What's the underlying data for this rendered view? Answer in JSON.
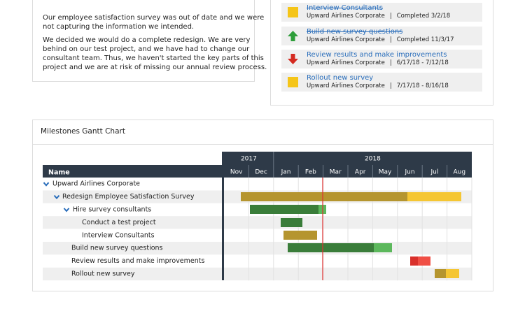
{
  "status_panel": {
    "paragraphs": [
      [
        "Our employee satisfaction survey was out of date and we were",
        "not capturing the information we intended."
      ],
      [
        "We decided we would do a complete redesign. We are very",
        "behind on our test project, and we have had to change our",
        "consultant team. Thus, we haven't started the key parts of this",
        "project and we are at risk of missing our annual review process."
      ]
    ]
  },
  "tasks": [
    {
      "title": "Interview Consultants",
      "organization": "Upward Airlines Corporate",
      "separator": "|",
      "detail": "Completed 3/2/18"
    },
    {
      "title": "Build new survey questions",
      "organization": "Upward Airlines Corporate",
      "separator": "|",
      "detail": "Completed 11/3/17"
    },
    {
      "title": "Review results and make improvements",
      "organization": "Upward Airlines Corporate",
      "separator": "|",
      "detail": "6/17/18 - 7/12/18"
    },
    {
      "title": "Rollout new survey",
      "organization": "Upward Airlines Corporate",
      "separator": "|",
      "detail": "7/17/18 - 8/16/18"
    }
  ],
  "gantt": {
    "title": "Milestones Gantt Chart",
    "name_header": "Name",
    "years": [
      "2017",
      "2018"
    ],
    "months": [
      "Nov",
      "Dec",
      "Jan",
      "Feb",
      "Mar",
      "Apr",
      "May",
      "Jun",
      "Jul",
      "Aug"
    ],
    "rows": [
      "Upward Airlines Corporate",
      "Redesign Employee Satisfaction Survey",
      "Hire survey consultants",
      "Conduct a test project",
      "Interview Consultants",
      "Build new survey questions",
      "Review results and make improvements",
      "Rollout new survey"
    ]
  }
}
